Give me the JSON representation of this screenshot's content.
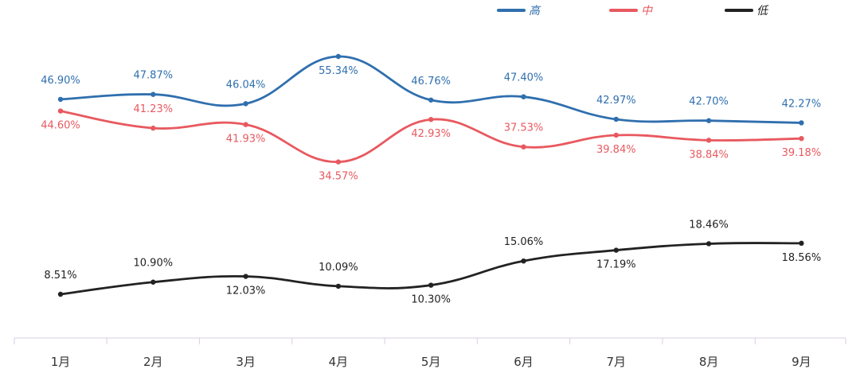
{
  "chart_data": {
    "type": "line",
    "categories": [
      "1月",
      "2月",
      "3月",
      "4月",
      "5月",
      "6月",
      "7月",
      "8月",
      "9月"
    ],
    "series": [
      {
        "name": "高",
        "color": "#2f6fae",
        "values": [
          46.9,
          47.87,
          46.04,
          55.34,
          46.76,
          47.4,
          42.97,
          42.7,
          42.27
        ],
        "labels": [
          "46.90%",
          "47.87%",
          "46.04%",
          "55.34%",
          "46.76%",
          "47.40%",
          "42.97%",
          "42.70%",
          "42.27%"
        ]
      },
      {
        "name": "中",
        "color": "#e8595f",
        "values": [
          44.6,
          41.23,
          41.93,
          34.57,
          42.93,
          37.53,
          39.84,
          38.84,
          39.18
        ],
        "labels": [
          "44.60%",
          "41.23%",
          "41.93%",
          "34.57%",
          "42.93%",
          "37.53%",
          "39.84%",
          "38.84%",
          "39.18%"
        ]
      },
      {
        "name": "低",
        "color": "#222222",
        "values": [
          8.51,
          10.9,
          12.03,
          10.09,
          10.3,
          15.06,
          17.19,
          18.46,
          18.56
        ],
        "labels": [
          "8.51%",
          "10.90%",
          "12.03%",
          "10.09%",
          "10.30%",
          "15.06%",
          "17.19%",
          "18.46%",
          "18.56%"
        ]
      }
    ],
    "legend_position": "top-right",
    "grid": false,
    "title": "",
    "xlabel": "",
    "ylabel": ""
  }
}
